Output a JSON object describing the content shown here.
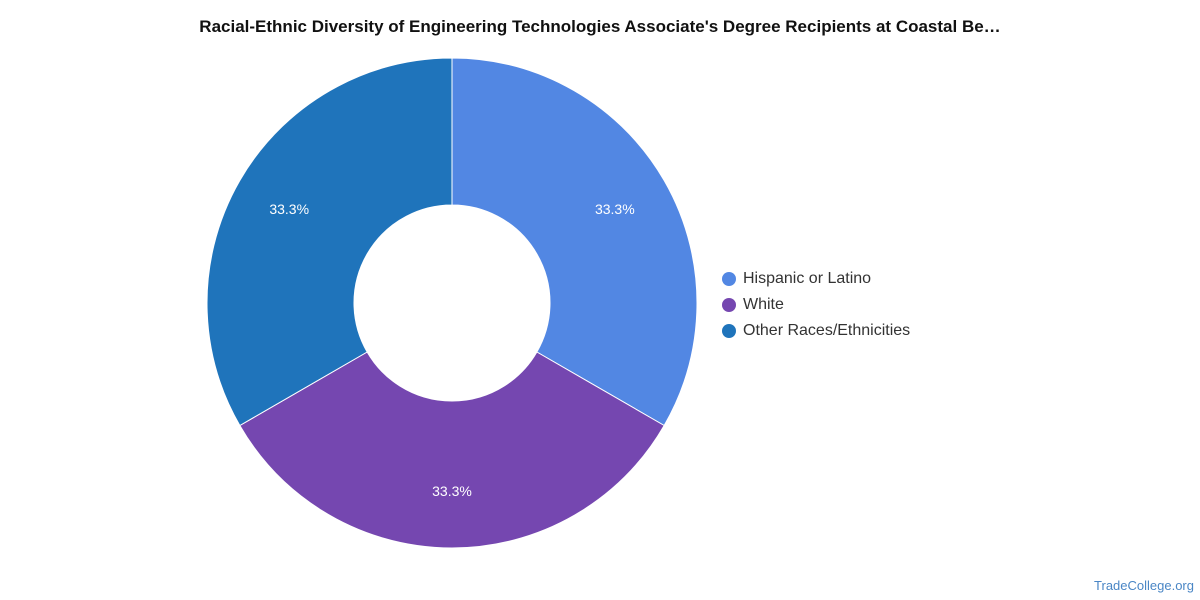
{
  "chart_data": {
    "type": "pie",
    "title": "Racial-Ethnic Diversity of Engineering Technologies Associate's Degree Recipients at Coastal Be…",
    "categories": [
      "Hispanic or Latino",
      "White",
      "Other Races/Ethnicities"
    ],
    "values": [
      33.3,
      33.3,
      33.3
    ],
    "labels": [
      "33.3%",
      "33.3%",
      "33.3%"
    ],
    "colors": [
      "#5287e3",
      "#7547b0",
      "#1f74bb"
    ],
    "legend_position": "right",
    "donut": true
  },
  "watermark": "TradeCollege.org"
}
